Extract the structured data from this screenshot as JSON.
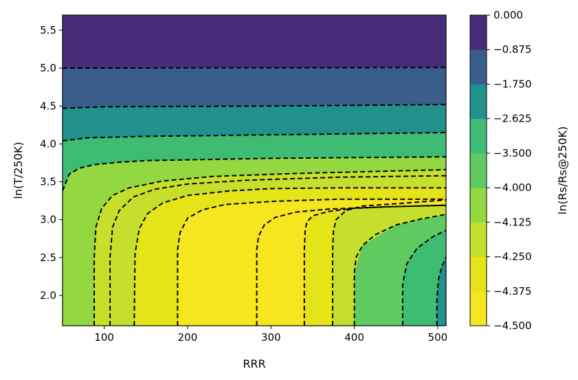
{
  "chart_data": {
    "type": "contour",
    "xlabel": "RRR",
    "ylabel": "ln(T/250K)",
    "colorbar_label": "ln(Rs/Rs@250K)",
    "xlim": [
      50,
      510
    ],
    "ylim": [
      1.6,
      5.7
    ],
    "xticks": [
      100,
      200,
      300,
      400,
      500
    ],
    "xtick_labels": [
      "100",
      "200",
      "300",
      "400",
      "500"
    ],
    "yticks": [
      2.0,
      2.5,
      3.0,
      3.5,
      4.0,
      4.5,
      5.0,
      5.5
    ],
    "ytick_labels": [
      "2.0",
      "2.5",
      "3.0",
      "3.5",
      "4.0",
      "4.5",
      "5.0",
      "5.5"
    ],
    "colorbar_levels": [
      -4.5,
      -4.375,
      -4.25,
      -4.125,
      -4.0,
      -3.5,
      -2.625,
      -1.75,
      -0.875,
      0.0
    ],
    "colorbar_tick_labels": [
      "−4.500",
      "−4.375",
      "−4.250",
      "−4.125",
      "−4.000",
      "−3.500",
      "−2.625",
      "−1.750",
      "−0.875",
      "0.000"
    ],
    "colorbar_colors": [
      "#f6e620",
      "#e4e419",
      "#c6df2c",
      "#93d741",
      "#60ca60",
      "#3fbc73",
      "#21918c",
      "#3a5e8c",
      "#472c7a"
    ],
    "regions": [
      {
        "level_index": 8,
        "points": [
          [
            50,
            5.7
          ],
          [
            510,
            5.7
          ],
          [
            510,
            5.01
          ],
          [
            50,
            5.0
          ]
        ]
      },
      {
        "level_index": 7,
        "points": [
          [
            50,
            5.0
          ],
          [
            510,
            5.01
          ],
          [
            510,
            4.52
          ],
          [
            300,
            4.5
          ],
          [
            100,
            4.49
          ],
          [
            50,
            4.47
          ]
        ]
      },
      {
        "level_index": 6,
        "points": [
          [
            50,
            4.47
          ],
          [
            100,
            4.49
          ],
          [
            300,
            4.5
          ],
          [
            510,
            4.52
          ],
          [
            510,
            4.15
          ],
          [
            300,
            4.12
          ],
          [
            150,
            4.1
          ],
          [
            80,
            4.08
          ],
          [
            50,
            4.04
          ]
        ]
      },
      {
        "level_index": 5,
        "points": [
          [
            50,
            4.04
          ],
          [
            80,
            4.08
          ],
          [
            150,
            4.1
          ],
          [
            300,
            4.12
          ],
          [
            510,
            4.15
          ],
          [
            510,
            3.83
          ],
          [
            400,
            3.82
          ],
          [
            300,
            3.81
          ],
          [
            200,
            3.79
          ],
          [
            150,
            3.78
          ],
          [
            120,
            3.76
          ],
          [
            90,
            3.73
          ],
          [
            70,
            3.68
          ],
          [
            58,
            3.6
          ],
          [
            50,
            3.38
          ]
        ]
      },
      {
        "level_index": 3,
        "points": [
          [
            50,
            3.38
          ],
          [
            58,
            3.6
          ],
          [
            70,
            3.68
          ],
          [
            90,
            3.73
          ],
          [
            120,
            3.76
          ],
          [
            150,
            3.78
          ],
          [
            200,
            3.79
          ],
          [
            300,
            3.81
          ],
          [
            400,
            3.82
          ],
          [
            510,
            3.83
          ],
          [
            510,
            3.07
          ],
          [
            450,
            2.93
          ],
          [
            410,
            2.66
          ],
          [
            400,
            2.3
          ],
          [
            400,
            1.6
          ],
          [
            50,
            1.6
          ]
        ]
      },
      {
        "level_index": 2,
        "points": [
          [
            88,
            1.6
          ],
          [
            88,
            2.5
          ],
          [
            90,
            2.9
          ],
          [
            97,
            3.15
          ],
          [
            110,
            3.32
          ],
          [
            130,
            3.42
          ],
          [
            170,
            3.51
          ],
          [
            230,
            3.57
          ],
          [
            330,
            3.61
          ],
          [
            510,
            3.66
          ],
          [
            510,
            3.07
          ],
          [
            450,
            2.93
          ],
          [
            410,
            2.66
          ],
          [
            400,
            2.3
          ],
          [
            400,
            1.6
          ]
        ]
      },
      {
        "level_index": 1,
        "points": [
          [
            136,
            1.6
          ],
          [
            137,
            2.55
          ],
          [
            142,
            2.88
          ],
          [
            152,
            3.08
          ],
          [
            170,
            3.22
          ],
          [
            200,
            3.32
          ],
          [
            250,
            3.38
          ],
          [
            300,
            3.41
          ],
          [
            380,
            3.42
          ],
          [
            510,
            3.42
          ],
          [
            510,
            3.26
          ],
          [
            450,
            3.21
          ],
          [
            410,
            3.18
          ],
          [
            390,
            3.12
          ],
          [
            378,
            3.0
          ],
          [
            375,
            2.85
          ],
          [
            374,
            2.6
          ],
          [
            374,
            1.6
          ]
        ]
      },
      {
        "level_index": 0,
        "points": [
          [
            188,
            1.6
          ],
          [
            188,
            2.6
          ],
          [
            191,
            2.83
          ],
          [
            200,
            3.02
          ],
          [
            218,
            3.13
          ],
          [
            245,
            3.2
          ],
          [
            300,
            3.24
          ],
          [
            380,
            3.27
          ],
          [
            510,
            3.27
          ],
          [
            510,
            3.19
          ],
          [
            440,
            3.17
          ],
          [
            400,
            3.15
          ],
          [
            370,
            3.11
          ],
          [
            350,
            3.05
          ],
          [
            343,
            2.97
          ],
          [
            341,
            2.85
          ],
          [
            340,
            2.6
          ],
          [
            340,
            1.6
          ]
        ]
      },
      {
        "level_index": 4,
        "points": [
          [
            510,
            3.07
          ],
          [
            450,
            2.93
          ],
          [
            410,
            2.66
          ],
          [
            400,
            2.3
          ],
          [
            400,
            1.6
          ],
          [
            510,
            1.6
          ]
        ]
      },
      {
        "level_index": 5,
        "points": [
          [
            458,
            1.6
          ],
          [
            458,
            2.15
          ],
          [
            463,
            2.42
          ],
          [
            475,
            2.62
          ],
          [
            495,
            2.78
          ],
          [
            510,
            2.86
          ],
          [
            510,
            1.6
          ]
        ]
      },
      {
        "level_index": 6,
        "points": [
          [
            499,
            1.6
          ],
          [
            499,
            1.95
          ],
          [
            501,
            2.22
          ],
          [
            505,
            2.38
          ],
          [
            510,
            2.5
          ],
          [
            510,
            1.6
          ]
        ]
      }
    ],
    "contours": [
      [
        [
          50,
          5.0
        ],
        [
          300,
          5.005
        ],
        [
          510,
          5.01
        ]
      ],
      [
        [
          50,
          4.47
        ],
        [
          100,
          4.49
        ],
        [
          300,
          4.5
        ],
        [
          510,
          4.52
        ]
      ],
      [
        [
          50,
          4.04
        ],
        [
          80,
          4.08
        ],
        [
          150,
          4.1
        ],
        [
          300,
          4.12
        ],
        [
          510,
          4.15
        ]
      ],
      [
        [
          50,
          3.38
        ],
        [
          58,
          3.6
        ],
        [
          70,
          3.68
        ],
        [
          90,
          3.73
        ],
        [
          120,
          3.76
        ],
        [
          150,
          3.78
        ],
        [
          200,
          3.79
        ],
        [
          300,
          3.81
        ],
        [
          400,
          3.82
        ],
        [
          510,
          3.83
        ]
      ],
      [
        [
          88,
          1.6
        ],
        [
          88,
          2.5
        ],
        [
          90,
          2.9
        ],
        [
          97,
          3.15
        ],
        [
          110,
          3.32
        ],
        [
          130,
          3.42
        ],
        [
          170,
          3.51
        ],
        [
          230,
          3.57
        ],
        [
          330,
          3.61
        ],
        [
          510,
          3.66
        ]
      ],
      [
        [
          107,
          1.6
        ],
        [
          107,
          2.5
        ],
        [
          110,
          2.9
        ],
        [
          118,
          3.12
        ],
        [
          135,
          3.3
        ],
        [
          160,
          3.4
        ],
        [
          200,
          3.47
        ],
        [
          270,
          3.52
        ],
        [
          380,
          3.56
        ],
        [
          510,
          3.58
        ]
      ],
      [
        [
          136,
          1.6
        ],
        [
          137,
          2.55
        ],
        [
          142,
          2.88
        ],
        [
          152,
          3.08
        ],
        [
          170,
          3.22
        ],
        [
          200,
          3.32
        ],
        [
          250,
          3.38
        ],
        [
          300,
          3.41
        ],
        [
          380,
          3.42
        ],
        [
          510,
          3.42
        ]
      ],
      [
        [
          188,
          1.6
        ],
        [
          188,
          2.6
        ],
        [
          191,
          2.83
        ],
        [
          200,
          3.02
        ],
        [
          218,
          3.13
        ],
        [
          245,
          3.2
        ],
        [
          300,
          3.24
        ],
        [
          380,
          3.27
        ],
        [
          510,
          3.27
        ]
      ],
      [
        [
          283,
          1.6
        ],
        [
          283,
          2.6
        ],
        [
          285,
          2.78
        ],
        [
          292,
          2.93
        ],
        [
          305,
          3.03
        ],
        [
          330,
          3.1
        ],
        [
          370,
          3.14
        ],
        [
          440,
          3.17
        ],
        [
          510,
          3.19
        ]
      ],
      [
        [
          340,
          1.6
        ],
        [
          340,
          2.6
        ],
        [
          341,
          2.85
        ],
        [
          343,
          2.97
        ],
        [
          350,
          3.05
        ],
        [
          370,
          3.11
        ],
        [
          400,
          3.15
        ],
        [
          440,
          3.17
        ],
        [
          510,
          3.19
        ]
      ],
      [
        [
          374,
          1.6
        ],
        [
          374,
          2.6
        ],
        [
          375,
          2.85
        ],
        [
          378,
          3.0
        ],
        [
          390,
          3.12
        ],
        [
          410,
          3.18
        ],
        [
          450,
          3.21
        ],
        [
          510,
          3.26
        ]
      ],
      [
        [
          400,
          1.6
        ],
        [
          400,
          2.3
        ],
        [
          402,
          2.5
        ],
        [
          410,
          2.66
        ],
        [
          425,
          2.8
        ],
        [
          450,
          2.93
        ],
        [
          480,
          3.01
        ],
        [
          510,
          3.07
        ]
      ],
      [
        [
          458,
          1.6
        ],
        [
          458,
          2.15
        ],
        [
          463,
          2.42
        ],
        [
          475,
          2.62
        ],
        [
          495,
          2.78
        ],
        [
          510,
          2.86
        ]
      ],
      [
        [
          499,
          1.6
        ],
        [
          499,
          1.95
        ],
        [
          501,
          2.22
        ],
        [
          505,
          2.38
        ],
        [
          510,
          2.5
        ]
      ]
    ]
  }
}
